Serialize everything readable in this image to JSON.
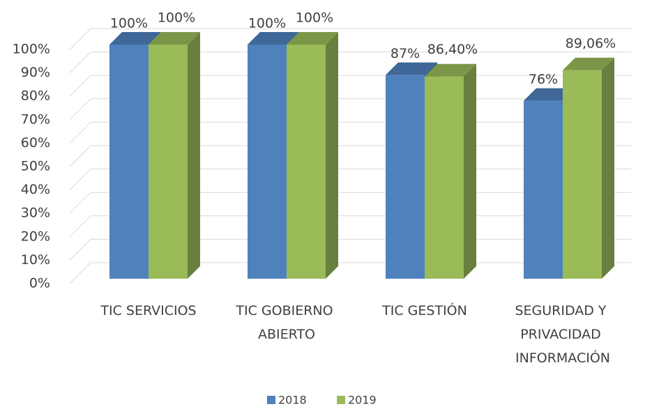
{
  "chart_data": {
    "type": "bar3d",
    "categories": [
      "TIC SERVICIOS",
      "TIC GOBIERNO ABIERTO",
      "TIC GESTIÓN",
      "SEGURIDAD Y PRIVACIDAD INFORMACIÓN"
    ],
    "series": [
      {
        "name": "2018",
        "color": "#4f81bd",
        "values": [
          100,
          100,
          87,
          76
        ],
        "value_labels": [
          "100%",
          "100%",
          "87%",
          "76%"
        ]
      },
      {
        "name": "2019",
        "color": "#9bbb59",
        "values": [
          100,
          100,
          86.4,
          89.06
        ],
        "value_labels": [
          "100%",
          "100%",
          "86,40%",
          "89,06%"
        ]
      }
    ],
    "ylim": [
      0,
      100
    ],
    "yticks": [
      {
        "value": 0,
        "label": "0%"
      },
      {
        "value": 10,
        "label": "10%"
      },
      {
        "value": 20,
        "label": "20%"
      },
      {
        "value": 30,
        "label": "30%"
      },
      {
        "value": 40,
        "label": "40%"
      },
      {
        "value": 50,
        "label": "50%"
      },
      {
        "value": 60,
        "label": "60%"
      },
      {
        "value": 70,
        "label": "70%"
      },
      {
        "value": 80,
        "label": "80%"
      },
      {
        "value": 90,
        "label": "90%"
      },
      {
        "value": 100,
        "label": "100%"
      }
    ],
    "grid": true,
    "legend": "bottom"
  }
}
